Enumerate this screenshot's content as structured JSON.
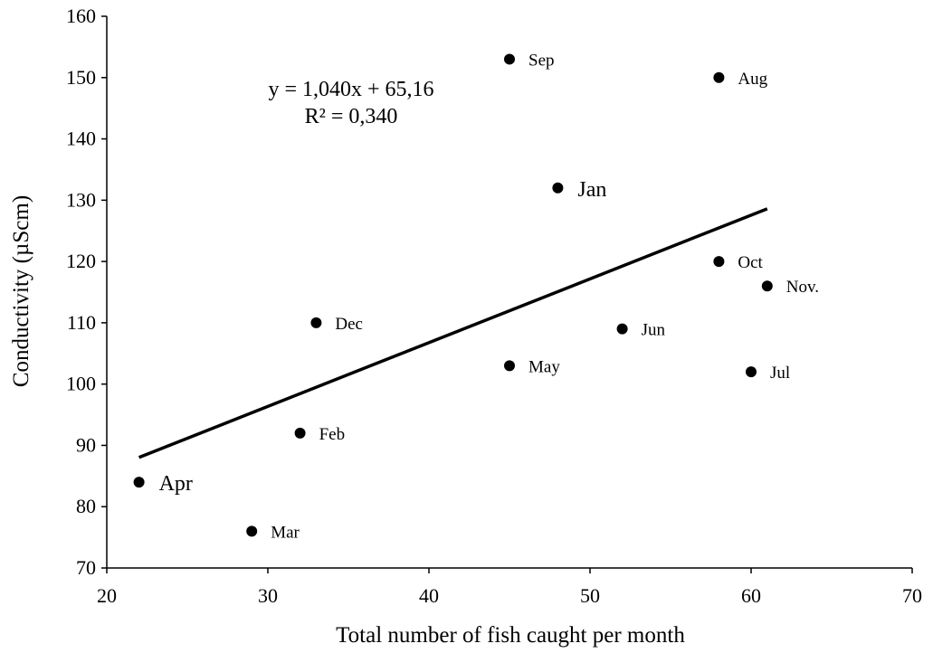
{
  "chart_data": {
    "type": "scatter",
    "title": "",
    "xlabel": "Total number of fish caught per month",
    "ylabel": "Conductivity (µScm)",
    "xlim": [
      20,
      70
    ],
    "ylim": [
      70,
      160
    ],
    "xticks": [
      20,
      30,
      40,
      50,
      60,
      70
    ],
    "yticks": [
      70,
      80,
      90,
      100,
      110,
      120,
      130,
      140,
      150,
      160
    ],
    "grid": false,
    "legend": "none",
    "point_color": "#000000",
    "points": [
      {
        "label": "Jan",
        "x": 48,
        "y": 132,
        "large": true
      },
      {
        "label": "Feb",
        "x": 32,
        "y": 92
      },
      {
        "label": "Mar",
        "x": 29,
        "y": 76
      },
      {
        "label": "Apr",
        "x": 22,
        "y": 84,
        "large": true
      },
      {
        "label": "May",
        "x": 45,
        "y": 103
      },
      {
        "label": "Jun",
        "x": 52,
        "y": 109
      },
      {
        "label": "Jul",
        "x": 60,
        "y": 102
      },
      {
        "label": "Aug",
        "x": 58,
        "y": 150
      },
      {
        "label": "Sep",
        "x": 45,
        "y": 153
      },
      {
        "label": "Oct",
        "x": 58,
        "y": 120
      },
      {
        "label": "Nov.",
        "x": 61,
        "y": 116
      },
      {
        "label": "Dec",
        "x": 33,
        "y": 110
      }
    ],
    "trendline": {
      "slope": 1.04,
      "intercept": 65.16,
      "x_range": [
        22,
        61
      ],
      "equation": "y = 1,040x + 65,16",
      "r_squared": "R² = 0,340"
    }
  }
}
